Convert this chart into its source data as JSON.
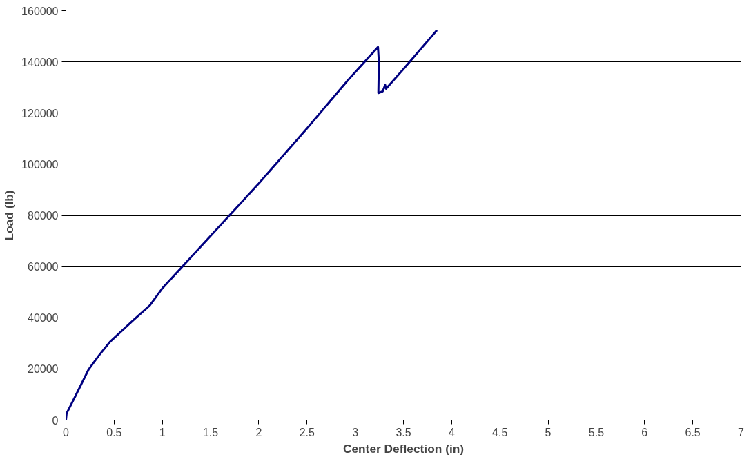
{
  "chart_data": {
    "type": "line",
    "xlabel": "Center Deflection (in)",
    "ylabel": "Load (lb)",
    "series": [
      {
        "color": "#000080",
        "x": [
          0,
          0.007,
          0.1,
          0.234,
          0.345,
          0.455,
          0.7,
          0.87,
          1.0,
          1.5,
          2.0,
          2.5,
          2.916,
          3.0,
          3.236,
          3.245,
          3.24,
          3.285,
          3.31,
          3.32,
          3.5,
          3.847
        ],
        "values": [
          0,
          2600,
          9500,
          19700,
          25400,
          30500,
          39100,
          44800,
          51500,
          72000,
          92500,
          114000,
          132500,
          136000,
          145800,
          140000,
          127800,
          128500,
          131000,
          129500,
          137200,
          152400
        ]
      }
    ],
    "xlim": [
      0,
      7
    ],
    "xticks": [
      0,
      0.5,
      1,
      1.5,
      2,
      2.5,
      3,
      3.5,
      4,
      4.5,
      5,
      5.5,
      6,
      6.5,
      7
    ],
    "ylim": [
      0,
      160000
    ],
    "yticks": [
      0,
      20000,
      40000,
      60000,
      80000,
      100000,
      120000,
      140000,
      160000
    ],
    "grid": "y",
    "line_style": "solid"
  }
}
